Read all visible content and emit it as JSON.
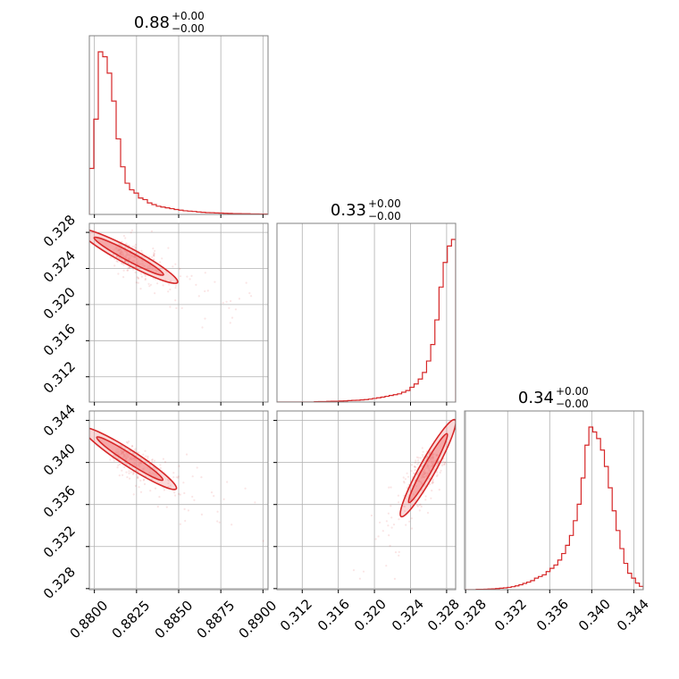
{
  "colors": {
    "accent": "#d62728",
    "fill": "#f08080",
    "grid": "#b0b0b0",
    "frame": "#808080"
  },
  "chart_data": {
    "type": "corner",
    "parameters": [
      {
        "range": [
          0.8797,
          0.8903
        ],
        "ticks": [
          "0.8800",
          "0.8825",
          "0.8850",
          "0.8875",
          "0.8900"
        ],
        "tick_values": [
          0.88,
          0.8825,
          0.885,
          0.8875,
          0.89
        ]
      },
      {
        "range": [
          0.3092,
          0.329
        ],
        "ticks": [
          "0.312",
          "0.316",
          "0.320",
          "0.324",
          "0.328"
        ],
        "tick_values": [
          0.312,
          0.316,
          0.32,
          0.324,
          0.328
        ]
      },
      {
        "range": [
          0.3279,
          0.3449
        ],
        "ticks": [
          "0.328",
          "0.332",
          "0.336",
          "0.340",
          "0.344"
        ],
        "tick_values": [
          0.328,
          0.332,
          0.336,
          0.34,
          0.344
        ]
      }
    ],
    "titles": [
      {
        "value": "0.88",
        "plus": "+0.00",
        "minus": "−0.00"
      },
      {
        "value": "0.33",
        "plus": "+0.00",
        "minus": "−0.00"
      },
      {
        "value": "0.34",
        "plus": "+0.00",
        "minus": "−0.00"
      }
    ],
    "histograms": [
      {
        "counts": [
          28,
          58,
          99,
          96,
          86,
          69,
          46,
          29,
          19,
          15,
          13,
          10,
          9,
          7,
          6,
          5,
          4.5,
          4,
          3.5,
          3,
          2.6,
          2.2,
          2,
          1.8,
          1.5,
          1.3,
          1.1,
          1,
          0.9,
          0.8,
          0.7,
          0.6,
          0.5,
          0.5,
          0.4,
          0.4,
          0.3,
          0.3,
          0.2,
          0.2
        ]
      },
      {
        "counts": [
          0,
          0,
          0,
          0,
          0,
          0,
          0,
          0,
          0,
          0.2,
          0.3,
          0.3,
          0.4,
          0.5,
          0.5,
          0.6,
          0.7,
          0.9,
          1,
          1.1,
          1.3,
          1.5,
          1.8,
          2.2,
          2.6,
          3,
          3.5,
          4,
          4.5,
          5,
          6,
          7,
          9,
          11,
          14,
          18,
          25,
          35,
          50,
          70,
          85,
          95,
          99
        ]
      },
      {
        "counts": [
          0,
          0,
          0,
          0.2,
          0.2,
          0.3,
          0.4,
          0.5,
          0.7,
          0.9,
          1.1,
          1.4,
          1.8,
          2.3,
          3,
          3.8,
          4.6,
          5.5,
          7,
          8,
          9,
          11,
          13,
          15,
          18,
          22,
          27,
          33,
          42,
          52,
          68,
          88,
          99,
          96,
          92,
          85,
          75,
          62,
          48,
          36,
          25,
          16,
          10,
          7,
          4,
          2
        ]
      }
    ],
    "correlations": [
      {
        "row": 1,
        "col": 0,
        "mean": [
          0.8812,
          0.3262
        ],
        "slope": -1.0,
        "spread": 0.18
      },
      {
        "row": 2,
        "col": 0,
        "mean": [
          0.8813,
          0.3412
        ],
        "slope": -1.04,
        "spread": 0.18
      },
      {
        "row": 2,
        "col": 1,
        "mean": [
          0.3268,
          0.3408
        ],
        "slope": 1.55,
        "spread": 0.22
      }
    ]
  }
}
